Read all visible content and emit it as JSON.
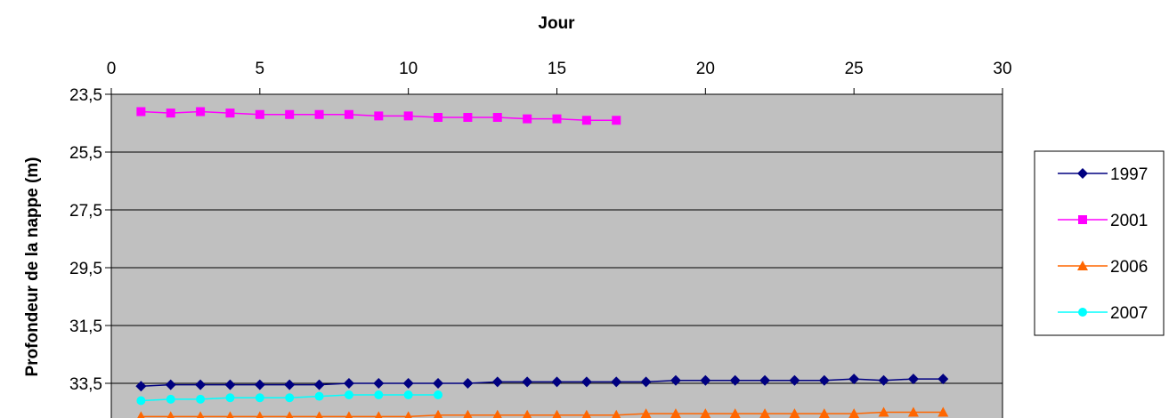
{
  "chart_data": {
    "type": "line",
    "title": "",
    "xlabel": "Jour",
    "ylabel": "Profondeur de la nappe (m)",
    "x_axis_position": "top",
    "y_axis_inverted": true,
    "xlim": [
      0,
      30
    ],
    "ylim": [
      23.5,
      35.5
    ],
    "x_ticks": [
      "0",
      "5",
      "10",
      "15",
      "20",
      "25",
      "30"
    ],
    "y_ticks": [
      "23,5",
      "25,5",
      "27,5",
      "29,5",
      "31,5",
      "33,5"
    ],
    "grid": "horizontal",
    "legend_position": "right",
    "plot_background": "#c0c0c0",
    "series": [
      {
        "name": "1997",
        "color": "#000080",
        "marker": "diamond",
        "x": [
          1,
          2,
          3,
          4,
          5,
          6,
          7,
          8,
          9,
          10,
          11,
          12,
          13,
          14,
          15,
          16,
          17,
          18,
          19,
          20,
          21,
          22,
          23,
          24,
          25,
          26,
          27,
          28
        ],
        "y": [
          33.6,
          33.55,
          33.55,
          33.55,
          33.55,
          33.55,
          33.55,
          33.5,
          33.5,
          33.5,
          33.5,
          33.5,
          33.45,
          33.45,
          33.45,
          33.45,
          33.45,
          33.45,
          33.4,
          33.4,
          33.4,
          33.4,
          33.4,
          33.4,
          33.35,
          33.4,
          33.35,
          33.35
        ]
      },
      {
        "name": "2001",
        "color": "#ff00ff",
        "marker": "square",
        "x": [
          1,
          2,
          3,
          4,
          5,
          6,
          7,
          8,
          9,
          10,
          11,
          12,
          13,
          14,
          15,
          16,
          17
        ],
        "y": [
          24.1,
          24.15,
          24.1,
          24.15,
          24.2,
          24.2,
          24.2,
          24.2,
          24.25,
          24.25,
          24.3,
          24.3,
          24.3,
          24.35,
          24.35,
          24.4,
          24.4
        ]
      },
      {
        "name": "2006",
        "color": "#ff6600",
        "marker": "triangle",
        "x": [
          1,
          2,
          3,
          4,
          5,
          6,
          7,
          8,
          9,
          10,
          11,
          12,
          13,
          14,
          15,
          16,
          17,
          18,
          19,
          20,
          21,
          22,
          23,
          24,
          25,
          26,
          27,
          28
        ],
        "y": [
          34.65,
          34.65,
          34.65,
          34.65,
          34.65,
          34.65,
          34.65,
          34.65,
          34.65,
          34.65,
          34.6,
          34.6,
          34.6,
          34.6,
          34.6,
          34.6,
          34.6,
          34.55,
          34.55,
          34.55,
          34.55,
          34.55,
          34.55,
          34.55,
          34.55,
          34.5,
          34.5,
          34.5
        ]
      },
      {
        "name": "2007",
        "color": "#00ffff",
        "marker": "circle",
        "x": [
          1,
          2,
          3,
          4,
          5,
          6,
          7,
          8,
          9,
          10,
          11
        ],
        "y": [
          34.1,
          34.05,
          34.05,
          34.0,
          34.0,
          34.0,
          33.95,
          33.9,
          33.9,
          33.9,
          33.9
        ]
      }
    ]
  }
}
